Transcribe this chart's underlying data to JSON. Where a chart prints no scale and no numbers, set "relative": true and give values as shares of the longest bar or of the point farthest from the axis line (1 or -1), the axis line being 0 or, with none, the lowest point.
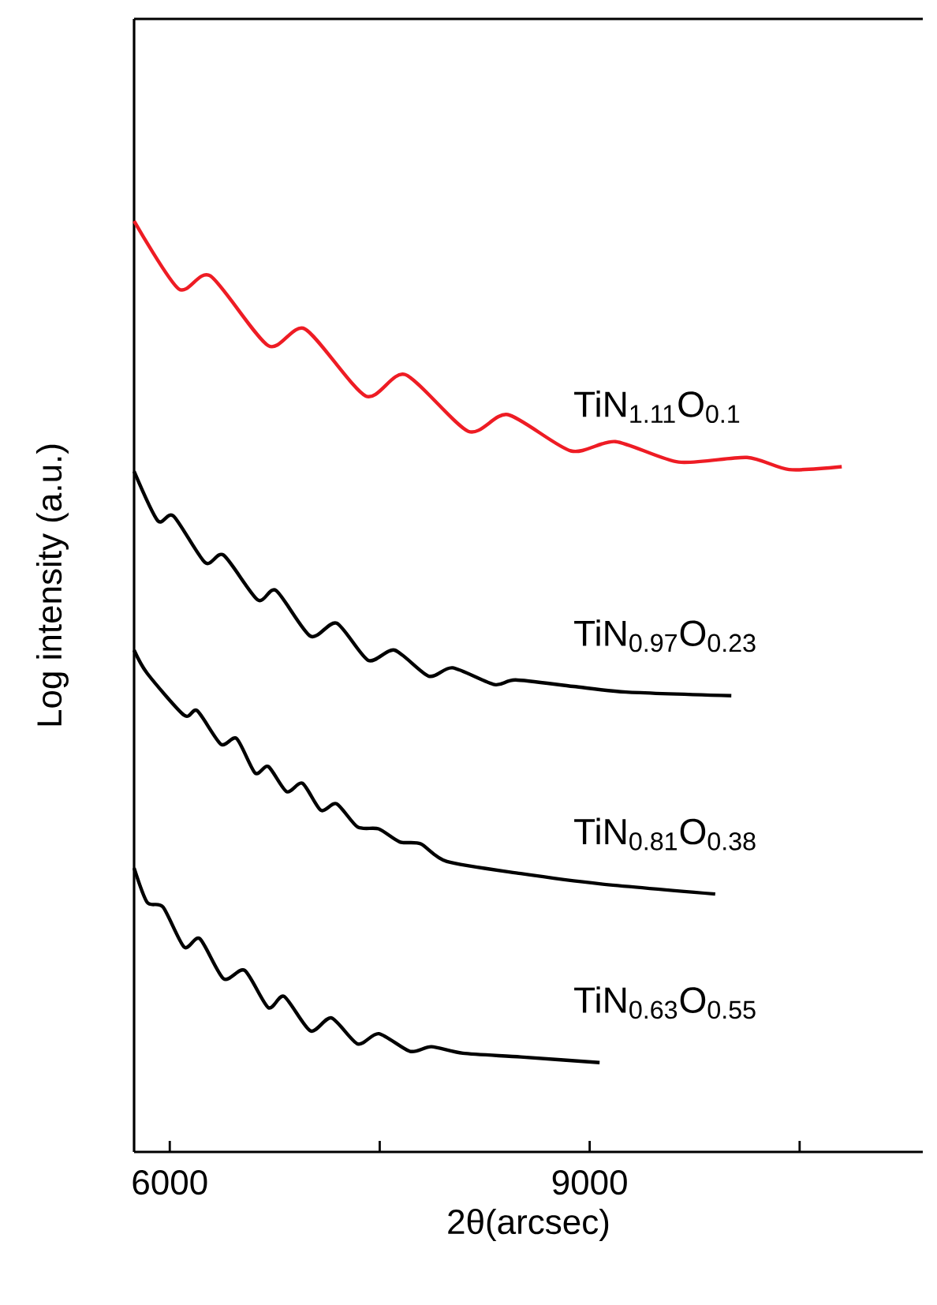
{
  "chart_data": {
    "type": "line",
    "relative": true,
    "xlabel": "2θ(arcsec)",
    "ylabel": "Log intensity (a.u.)",
    "xlim": [
      5745,
      11380
    ],
    "xticks": [
      6000,
      {
        "value": 7500,
        "label": null
      },
      9000,
      {
        "value": 10500,
        "label": null
      }
    ],
    "tick_labels": "x",
    "series": [
      {
        "name": "TiN$_{1.11}$O$_{0.1}$",
        "color": "#ee1c24",
        "x": [
          5745,
          6064,
          6290,
          6704,
          6966,
          7400,
          7682,
          8133,
          8415,
          8866,
          9185,
          9636,
          10124,
          10425,
          10801
        ],
        "values": [
          1.0,
          0.927,
          0.941,
          0.866,
          0.884,
          0.812,
          0.835,
          0.774,
          0.792,
          0.753,
          0.763,
          0.741,
          0.746,
          0.733,
          0.736
        ]
      },
      {
        "name": "TiN$_{0.97}$O$_{0.23}$",
        "color": "#000000",
        "x": [
          5745,
          5914,
          6027,
          6253,
          6385,
          6628,
          6760,
          7005,
          7192,
          7418,
          7606,
          7851,
          8020,
          8320,
          8471,
          8884,
          9260,
          10012
        ],
        "values": [
          0.731,
          0.678,
          0.683,
          0.633,
          0.641,
          0.593,
          0.603,
          0.554,
          0.568,
          0.528,
          0.539,
          0.511,
          0.52,
          0.502,
          0.507,
          0.5,
          0.494,
          0.49
        ]
      },
      {
        "name": "TiN$_{0.81}$O$_{0.38}$",
        "color": "#000000",
        "x": [
          5745,
          5839,
          6103,
          6196,
          6365,
          6478,
          6610,
          6704,
          6835,
          6948,
          7079,
          7192,
          7342,
          7492,
          7643,
          7793,
          7980,
          8507,
          9070,
          9897
        ],
        "values": [
          0.539,
          0.514,
          0.469,
          0.474,
          0.438,
          0.444,
          0.407,
          0.414,
          0.387,
          0.396,
          0.367,
          0.374,
          0.349,
          0.347,
          0.333,
          0.331,
          0.312,
          0.299,
          0.288,
          0.277
        ]
      },
      {
        "name": "TiN$_{0.63}$O$_{0.55}$",
        "color": "#000000",
        "x": [
          5745,
          5839,
          5952,
          6103,
          6215,
          6385,
          6535,
          6704,
          6817,
          7005,
          7155,
          7343,
          7493,
          7718,
          7869,
          8094,
          8508,
          9071
        ],
        "values": [
          0.305,
          0.268,
          0.263,
          0.22,
          0.229,
          0.186,
          0.195,
          0.155,
          0.167,
          0.13,
          0.144,
          0.116,
          0.127,
          0.108,
          0.113,
          0.106,
          0.102,
          0.096
        ]
      }
    ]
  }
}
